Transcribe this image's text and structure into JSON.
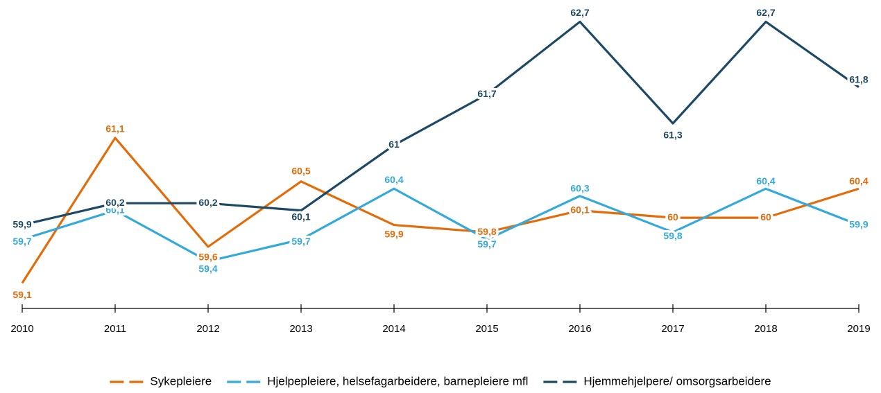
{
  "chart_data": {
    "type": "line",
    "categories": [
      "2010",
      "2011",
      "2012",
      "2013",
      "2014",
      "2015",
      "2016",
      "2017",
      "2018",
      "2019"
    ],
    "series": [
      {
        "name": "Sykepleiere",
        "color": "#e36c09",
        "values": [
          59.1,
          61.1,
          59.6,
          60.5,
          59.9,
          59.8,
          60.1,
          60,
          60,
          60.4
        ],
        "value_labels": [
          "59,1",
          "61,1",
          "59,6",
          "60,5",
          "59,9",
          "59,8",
          "60,1",
          "60",
          "60",
          "60,4"
        ]
      },
      {
        "name": "Hjelpepleiere, helsefagarbeidere, barnepleiere mfl",
        "color": "#33a9dc",
        "values": [
          59.7,
          60.1,
          59.4,
          59.7,
          60.4,
          59.7,
          60.3,
          59.8,
          60.4,
          59.9
        ],
        "value_labels": [
          "59,7",
          "60,1",
          "59,4",
          "59,7",
          "60,4",
          "59,7",
          "60,3",
          "59,8",
          "60,4",
          "59,9"
        ]
      },
      {
        "name": "Hjemmehjelpere/ omsorgsarbeidere",
        "color": "#1d4966",
        "values": [
          59.9,
          60.2,
          60.2,
          60.1,
          61,
          61.7,
          62.7,
          61.3,
          62.7,
          61.8
        ],
        "value_labels": [
          "59,9",
          "60,2",
          "60,2",
          "60,1",
          "61",
          "61,7",
          "62,7",
          "61,3",
          "62,7",
          "61,8"
        ]
      }
    ],
    "ylim": [
      58.75,
      63
    ],
    "legend": "bottom"
  }
}
